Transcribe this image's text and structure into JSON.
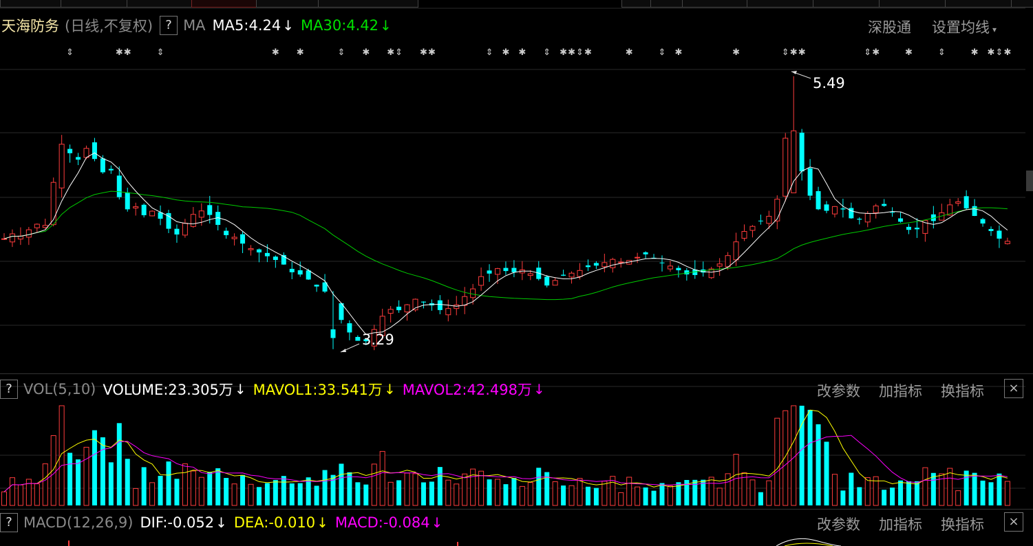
{
  "header": {
    "stock_name": "天海防务",
    "period": "(日线,不复权)",
    "help": "?",
    "ma_label": "MA",
    "ma5": {
      "text": "MA5:4.24",
      "arrow": "↓",
      "color": "#ffffff"
    },
    "ma30": {
      "text": "MA30:4.42",
      "arrow": "↓",
      "color": "#00e000"
    },
    "shenguton": "深股通",
    "set_ma": "设置均线",
    "caret": "▾"
  },
  "annotations": {
    "high": "5.49",
    "low": "3.29"
  },
  "volume_panel": {
    "help": "?",
    "label": "VOL(5,10)",
    "volume": {
      "text": "VOLUME:23.305万",
      "arrow": "↓",
      "color": "#ffffff"
    },
    "mavol1": {
      "text": "MAVOL1:33.541万",
      "arrow": "↓",
      "color": "#ffff00"
    },
    "mavol2": {
      "text": "MAVOL2:42.498万",
      "arrow": "↓",
      "color": "#ff00ff"
    },
    "btn_params": "改参数",
    "btn_add": "加指标",
    "btn_swap": "换指标",
    "close": "×"
  },
  "macd_panel": {
    "help": "?",
    "label": "MACD(12,26,9)",
    "dif": {
      "text": "DIF:-0.052",
      "arrow": "↓",
      "color": "#ffffff"
    },
    "dea": {
      "text": "DEA:-0.010",
      "arrow": "↓",
      "color": "#ffff00"
    },
    "macd": {
      "text": "MACD:-0.084",
      "arrow": "↓",
      "color": "#ff00ff"
    },
    "btn_params": "改参数",
    "btn_add": "加指标",
    "btn_swap": "换指标",
    "close": "×"
  },
  "colors": {
    "up": "#ff3c3c",
    "down": "#00ffff",
    "ma5": "#ffffff",
    "ma30": "#00cc00",
    "mavol1": "#ffff00",
    "mavol2": "#ff00ff",
    "grid": "#2a2a2a",
    "event_marker": "#cccccc"
  },
  "chart_data": {
    "type": "candlestick",
    "price_range": [
      3.25,
      5.55
    ],
    "high_marker": 5.49,
    "low_marker": 3.29,
    "seed": [
      4.18,
      4.22,
      4.2,
      4.25,
      4.3,
      4.26,
      4.6,
      4.95,
      4.88,
      4.8,
      4.92,
      4.85,
      4.7,
      4.78,
      4.55,
      4.4,
      4.47,
      4.35,
      4.42,
      4.36,
      4.3,
      4.18,
      4.28,
      4.35,
      4.42,
      4.38,
      4.36,
      4.2,
      4.22,
      4.16,
      4.12,
      4.08,
      4.06,
      4.02,
      4.0,
      3.95,
      3.88,
      3.9,
      3.82,
      3.78,
      3.74,
      3.62,
      3.48,
      3.4,
      3.34,
      3.36,
      3.48,
      3.58,
      3.62,
      3.6,
      3.66,
      3.7,
      3.66,
      3.64,
      3.6,
      3.62,
      3.65,
      3.72,
      3.78,
      3.88,
      3.9,
      3.94,
      3.92,
      3.91,
      3.93,
      3.9,
      3.86,
      3.8,
      3.84,
      3.88,
      3.9,
      3.92,
      3.95,
      3.96,
      3.98,
      4.02,
      3.99,
      4.0,
      4.02,
      4.06,
      4.04,
      3.99,
      3.97,
      3.94,
      3.9,
      3.88,
      3.9,
      3.92,
      3.96,
      4.0,
      4.1,
      4.22,
      4.26,
      4.3,
      4.34,
      4.38,
      4.6,
      5.3,
      4.9,
      4.6,
      4.48,
      4.38,
      4.42,
      4.45,
      4.4,
      4.32,
      4.34,
      4.4,
      4.46,
      4.44,
      4.38,
      4.3,
      4.24,
      4.26,
      4.34,
      4.32,
      4.4,
      4.46,
      4.48,
      4.42,
      4.36,
      4.3,
      4.24,
      4.18,
      4.16
    ]
  },
  "markers": "sparse-events"
}
